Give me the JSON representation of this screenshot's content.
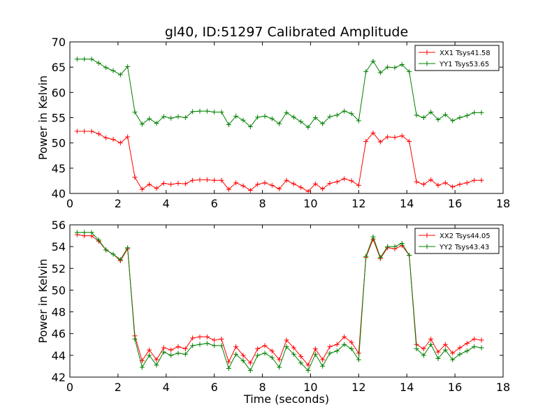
{
  "title": "gl40, ID:51297 Calibrated Amplitude",
  "chart_data": [
    {
      "type": "line",
      "title": "gl40, ID:51297 Calibrated Amplitude",
      "xlabel": "",
      "ylabel": "Power in Kelvin",
      "xlim": [
        0,
        18
      ],
      "ylim": [
        40,
        70
      ],
      "xticks": [
        "0",
        "2",
        "4",
        "6",
        "8",
        "10",
        "12",
        "14",
        "16",
        "18"
      ],
      "yticks": [
        "40",
        "45",
        "50",
        "55",
        "60",
        "65",
        "70"
      ],
      "grid": false,
      "legend_position": "top-right",
      "x": [
        0.3,
        0.6,
        0.9,
        1.2,
        1.5,
        1.8,
        2.1,
        2.4,
        2.7,
        3.0,
        3.3,
        3.6,
        3.9,
        4.2,
        4.5,
        4.8,
        5.1,
        5.4,
        5.7,
        6.0,
        6.3,
        6.6,
        6.9,
        7.2,
        7.5,
        7.8,
        8.1,
        8.4,
        8.7,
        9.0,
        9.3,
        9.6,
        9.9,
        10.2,
        10.5,
        10.8,
        11.1,
        11.4,
        11.7,
        12.0,
        12.3,
        12.6,
        12.9,
        13.2,
        13.5,
        13.8,
        14.1,
        14.4,
        14.7,
        15.0,
        15.3,
        15.6,
        15.9,
        16.2,
        16.5,
        16.8,
        17.1
      ],
      "series": [
        {
          "name": "XX1 Tsys41.58",
          "color": "#ff0000",
          "values": [
            52.3,
            52.3,
            52.3,
            51.8,
            51.0,
            50.7,
            50.0,
            51.2,
            43.2,
            40.8,
            41.8,
            41.0,
            42.0,
            41.8,
            42.0,
            41.9,
            42.6,
            42.7,
            42.7,
            42.6,
            42.6,
            40.8,
            42.1,
            41.5,
            40.6,
            41.8,
            42.1,
            41.6,
            40.9,
            42.6,
            41.9,
            41.2,
            40.4,
            41.9,
            40.9,
            42.0,
            42.3,
            42.9,
            42.5,
            41.6,
            50.3,
            52.0,
            50.2,
            51.2,
            51.1,
            51.4,
            50.3,
            42.3,
            41.8,
            42.7,
            41.6,
            42.1,
            41.3,
            41.8,
            42.1,
            42.6,
            42.6
          ]
        },
        {
          "name": "YY1 Tsys53.65",
          "color": "#008000",
          "values": [
            66.6,
            66.6,
            66.6,
            65.8,
            64.9,
            64.3,
            63.5,
            65.1,
            56.1,
            53.7,
            54.8,
            53.9,
            55.2,
            54.9,
            55.2,
            55.0,
            56.2,
            56.3,
            56.3,
            56.1,
            56.1,
            53.6,
            55.3,
            54.5,
            53.2,
            55.1,
            55.3,
            54.8,
            53.8,
            56.0,
            55.1,
            54.2,
            53.1,
            55.0,
            53.8,
            55.2,
            55.5,
            56.3,
            55.8,
            54.4,
            64.1,
            66.2,
            63.9,
            65.0,
            64.9,
            65.5,
            64.1,
            55.5,
            55.0,
            56.1,
            54.6,
            55.6,
            54.4,
            55.0,
            55.4,
            56.0,
            56.0
          ]
        }
      ]
    },
    {
      "type": "line",
      "title": "",
      "xlabel": "Time (seconds)",
      "ylabel": "Power in Kelvin",
      "xlim": [
        0,
        18
      ],
      "ylim": [
        42,
        56
      ],
      "xticks": [
        "0",
        "2",
        "4",
        "6",
        "8",
        "10",
        "12",
        "14",
        "16",
        "18"
      ],
      "yticks": [
        "42",
        "44",
        "46",
        "48",
        "50",
        "52",
        "54",
        "56"
      ],
      "grid": false,
      "legend_position": "top-right",
      "x": [
        0.3,
        0.6,
        0.9,
        1.2,
        1.5,
        1.8,
        2.1,
        2.4,
        2.7,
        3.0,
        3.3,
        3.6,
        3.9,
        4.2,
        4.5,
        4.8,
        5.1,
        5.4,
        5.7,
        6.0,
        6.3,
        6.6,
        6.9,
        7.2,
        7.5,
        7.8,
        8.1,
        8.4,
        8.7,
        9.0,
        9.3,
        9.6,
        9.9,
        10.2,
        10.5,
        10.8,
        11.1,
        11.4,
        11.7,
        12.0,
        12.3,
        12.6,
        12.9,
        13.2,
        13.5,
        13.8,
        14.1,
        14.4,
        14.7,
        15.0,
        15.3,
        15.6,
        15.9,
        16.2,
        16.5,
        16.8,
        17.1
      ],
      "series": [
        {
          "name": "XX2 Tsys44.05",
          "color": "#ff0000",
          "values": [
            55.1,
            55.0,
            55.0,
            54.5,
            53.7,
            53.3,
            52.7,
            53.8,
            45.8,
            43.5,
            44.5,
            43.6,
            44.7,
            44.5,
            44.8,
            44.6,
            45.6,
            45.7,
            45.7,
            45.4,
            45.5,
            43.4,
            44.8,
            44.0,
            43.3,
            44.6,
            44.9,
            44.4,
            43.6,
            45.4,
            44.7,
            43.9,
            43.1,
            44.6,
            43.6,
            44.8,
            45.0,
            45.7,
            45.2,
            44.2,
            53.0,
            54.7,
            52.9,
            53.9,
            53.8,
            54.1,
            53.2,
            45.0,
            44.6,
            45.5,
            44.3,
            45.0,
            44.2,
            44.7,
            45.1,
            45.5,
            45.4
          ]
        },
        {
          "name": "YY2 Tsys43.43",
          "color": "#008000",
          "values": [
            55.3,
            55.3,
            55.3,
            54.6,
            53.7,
            53.3,
            52.8,
            53.9,
            45.5,
            42.9,
            44.0,
            43.1,
            44.3,
            44.0,
            44.2,
            44.1,
            44.9,
            45.0,
            45.1,
            44.9,
            44.9,
            42.8,
            44.1,
            43.5,
            42.6,
            44.0,
            44.2,
            43.8,
            42.9,
            44.8,
            44.1,
            43.3,
            42.6,
            44.1,
            43.0,
            44.2,
            44.4,
            45.0,
            44.6,
            43.6,
            53.1,
            54.9,
            53.0,
            54.0,
            54.0,
            54.3,
            53.2,
            44.6,
            44.0,
            45.0,
            43.7,
            44.5,
            43.6,
            44.1,
            44.4,
            44.8,
            44.7
          ]
        }
      ]
    }
  ]
}
